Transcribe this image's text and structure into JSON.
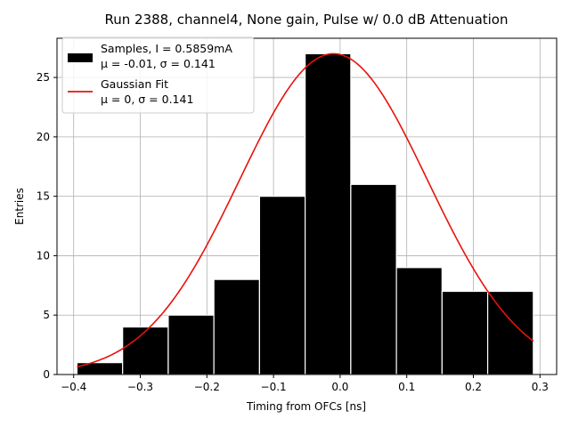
{
  "chart_data": {
    "type": "bar",
    "title": "Run 2388, channel4, None gain, Pulse w/ 0.0 dB Attenuation",
    "xlabel": "Timing from OFCs [ns]",
    "ylabel": "Entries",
    "xlim": [
      -0.425,
      0.325
    ],
    "ylim": [
      0,
      28.3
    ],
    "grid": true,
    "legend_position": "top-left",
    "x_ticks": [
      -0.4,
      -0.3,
      -0.2,
      -0.1,
      0.0,
      0.1,
      0.2,
      0.3
    ],
    "x_tick_labels": [
      "−0.4",
      "−0.3",
      "−0.2",
      "−0.1",
      "0.0",
      "0.1",
      "0.2",
      "0.3"
    ],
    "y_ticks": [
      0,
      5,
      10,
      15,
      20,
      25
    ],
    "y_tick_labels": [
      "0",
      "5",
      "10",
      "15",
      "20",
      "25"
    ],
    "bin_edges": [
      -0.395,
      -0.3265,
      -0.258,
      -0.1895,
      -0.121,
      -0.0525,
      0.016,
      0.0845,
      0.153,
      0.2215,
      0.29
    ],
    "histogram": {
      "label_line1": "Samples, I = 0.5859mA",
      "label_line2": "μ = -0.01, σ = 0.141",
      "counts": [
        1,
        4,
        5,
        8,
        15,
        27,
        16,
        9,
        7,
        7
      ],
      "color": "#000000",
      "edge_color": "#ffffff"
    },
    "fit": {
      "label_line1": "Gaussian Fit",
      "label_line2": "μ = 0, σ = 0.141",
      "amplitude": 27,
      "mu": -0.01,
      "sigma": 0.141,
      "x_range": [
        -0.395,
        0.29
      ],
      "color": "#e8120c"
    },
    "colors": {
      "grid": "#b0b0b0",
      "axes": "#000000"
    }
  }
}
